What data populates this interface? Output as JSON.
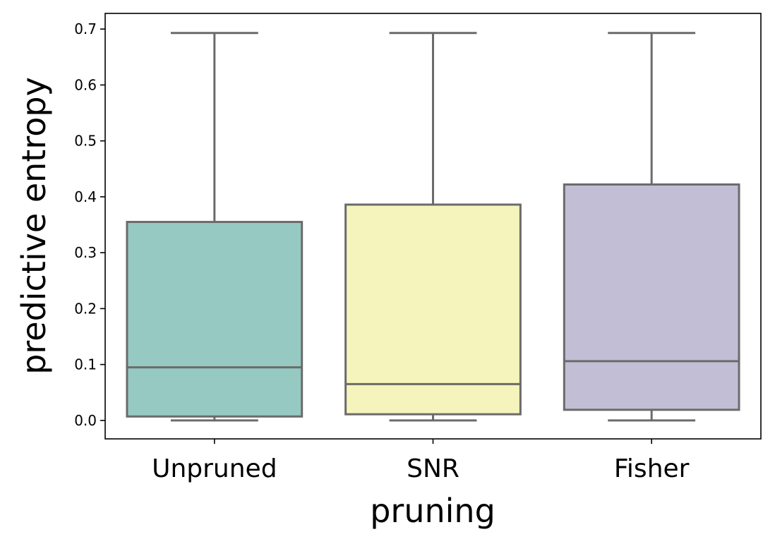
{
  "chart_data": {
    "type": "box",
    "xlabel": "pruning",
    "ylabel": "predictive entropy",
    "ylim": [
      -0.033,
      0.728
    ],
    "yticks": [
      "0.0",
      "0.1",
      "0.2",
      "0.3",
      "0.4",
      "0.5",
      "0.6",
      "0.7"
    ],
    "grid": false,
    "categories": [
      "Unpruned",
      "SNR",
      "Fisher"
    ],
    "boxes": [
      {
        "category": "Unpruned",
        "whisker_low": 0.0,
        "q1": 0.007,
        "median": 0.095,
        "q3": 0.355,
        "whisker_high": 0.693,
        "color": "#96c9c1"
      },
      {
        "category": "SNR",
        "whisker_low": 0.0,
        "q1": 0.011,
        "median": 0.065,
        "q3": 0.386,
        "whisker_high": 0.693,
        "color": "#f5f4bc"
      },
      {
        "category": "Fisher",
        "whisker_low": 0.0,
        "q1": 0.019,
        "median": 0.106,
        "q3": 0.422,
        "whisker_high": 0.693,
        "color": "#c2bed6"
      }
    ],
    "line_color": "#6b6b6b"
  }
}
